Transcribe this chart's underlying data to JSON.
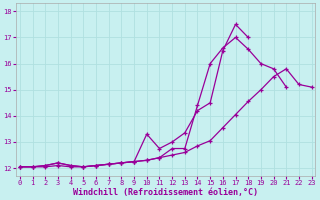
{
  "xlabel": "Windchill (Refroidissement éolien,°C)",
  "bg_color": "#c8f0f0",
  "grid_color": "#b0e0e0",
  "line_color": "#990099",
  "x_values": [
    0,
    1,
    2,
    3,
    4,
    5,
    6,
    7,
    8,
    9,
    10,
    11,
    12,
    13,
    14,
    15,
    16,
    17,
    18,
    19,
    20,
    21,
    22,
    23
  ],
  "series1": [
    12.05,
    12.05,
    12.1,
    12.2,
    12.1,
    12.05,
    12.1,
    12.15,
    12.2,
    12.25,
    12.3,
    12.4,
    12.75,
    12.75,
    14.4,
    16.0,
    16.6,
    17.0,
    16.55,
    16.0,
    15.8,
    15.1,
    null,
    null
  ],
  "series2": [
    12.05,
    12.05,
    12.1,
    12.2,
    12.1,
    12.05,
    12.1,
    12.15,
    12.2,
    12.25,
    13.3,
    12.75,
    13.0,
    13.35,
    14.2,
    14.5,
    16.5,
    17.5,
    17.0,
    null,
    null,
    null,
    null,
    null
  ],
  "series3": [
    12.05,
    12.05,
    12.05,
    12.1,
    12.05,
    12.05,
    12.1,
    12.15,
    12.2,
    12.25,
    12.3,
    12.4,
    12.5,
    12.6,
    12.85,
    13.05,
    13.55,
    14.05,
    14.55,
    15.0,
    15.5,
    15.8,
    15.2,
    15.1
  ],
  "ylim": [
    11.7,
    18.3
  ],
  "yticks": [
    12,
    13,
    14,
    15,
    16,
    17,
    18
  ],
  "xticks": [
    0,
    1,
    2,
    3,
    4,
    5,
    6,
    7,
    8,
    9,
    10,
    11,
    12,
    13,
    14,
    15,
    16,
    17,
    18,
    19,
    20,
    21,
    22,
    23
  ],
  "xlim": [
    -0.3,
    23.3
  ],
  "tick_fontsize": 5.0,
  "xlabel_fontsize": 6.0
}
